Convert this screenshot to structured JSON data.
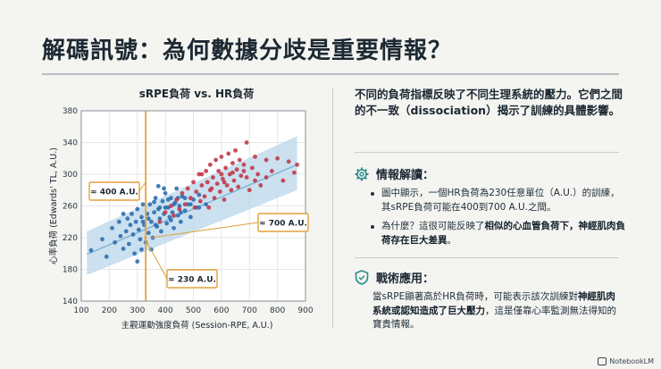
{
  "slide": {
    "title": "解碼訊號：為何數據分歧是重要情報？"
  },
  "chart_data": {
    "type": "scatter",
    "title": "sRPE負荷 vs. HR負荷",
    "xlabel": "主觀運動強度負荷 (Session-RPE, A.U.)",
    "ylabel": "心率負荷 (Edwards' TL, A.U.)",
    "xlim": [
      100,
      900
    ],
    "ylim": [
      140,
      380
    ],
    "xticks": [
      100,
      200,
      300,
      400,
      500,
      600,
      700,
      800,
      900
    ],
    "yticks": [
      140,
      180,
      220,
      260,
      300,
      340,
      380
    ],
    "grid": true,
    "reference_line_x": 330,
    "regression": {
      "x": [
        120,
        870
      ],
      "y": [
        199,
        312
      ]
    },
    "band": {
      "x": [
        120,
        870
      ],
      "upper": [
        228,
        348
      ],
      "lower": [
        173,
        280
      ]
    },
    "annotations": [
      {
        "text": "≈ 400 A.U.",
        "x": 330,
        "y": 290
      },
      {
        "text": "≈ 700 A.U.",
        "x": 330,
        "y": 220
      },
      {
        "text": "≈ 230 A.U.",
        "x": 330,
        "y": 230
      }
    ],
    "colors": {
      "blue": "#2f6fb0",
      "red": "#c23a4a",
      "ref": "#e6a23c",
      "band": "#b9d7ea",
      "line": "#7fb6d6"
    },
    "series": [
      {
        "color": "blue",
        "points": [
          [
            135,
            204
          ],
          [
            175,
            218
          ],
          [
            190,
            196
          ],
          [
            210,
            232
          ],
          [
            220,
            214
          ],
          [
            235,
            240
          ],
          [
            240,
            222
          ],
          [
            250,
            206
          ],
          [
            260,
            228
          ],
          [
            265,
            244
          ],
          [
            270,
            212
          ],
          [
            275,
            236
          ],
          [
            280,
            250
          ],
          [
            285,
            224
          ],
          [
            290,
            200
          ],
          [
            295,
            240
          ],
          [
            300,
            256
          ],
          [
            305,
            230
          ],
          [
            310,
            218
          ],
          [
            315,
            246
          ],
          [
            320,
            262
          ],
          [
            325,
            236
          ],
          [
            330,
            214
          ],
          [
            335,
            250
          ],
          [
            340,
            226
          ],
          [
            345,
            262
          ],
          [
            350,
            240
          ],
          [
            355,
            220
          ],
          [
            360,
            252
          ],
          [
            365,
            270
          ],
          [
            370,
            234
          ],
          [
            375,
            256
          ],
          [
            380,
            244
          ],
          [
            385,
            228
          ],
          [
            390,
            266
          ],
          [
            395,
            250
          ],
          [
            400,
            276
          ],
          [
            405,
            238
          ],
          [
            410,
            258
          ],
          [
            415,
            246
          ],
          [
            420,
            270
          ],
          [
            425,
            252
          ],
          [
            430,
            232
          ],
          [
            435,
            264
          ],
          [
            440,
            282
          ],
          [
            445,
            248
          ],
          [
            450,
            260
          ],
          [
            455,
            240
          ],
          [
            460,
            272
          ],
          [
            470,
            254
          ],
          [
            480,
            262
          ],
          [
            490,
            246
          ],
          [
            500,
            268
          ],
          [
            510,
            258
          ],
          [
            520,
            274
          ],
          [
            300,
            190
          ],
          [
            315,
            205
          ],
          [
            350,
            205
          ],
          [
            360,
            265
          ],
          [
            375,
            285
          ],
          [
            395,
            282
          ],
          [
            410,
            268
          ],
          [
            280,
            270
          ],
          [
            250,
            250
          ],
          [
            320,
            240
          ],
          [
            340,
            244
          ],
          [
            365,
            236
          ],
          [
            380,
            258
          ],
          [
            400,
            258
          ],
          [
            420,
            242
          ],
          [
            430,
            262
          ],
          [
            445,
            270
          ],
          [
            455,
            252
          ],
          [
            470,
            270
          ],
          [
            490,
            262
          ],
          [
            520,
            258
          ],
          [
            545,
            262
          ]
        ]
      },
      {
        "color": "red",
        "points": [
          [
            380,
            240
          ],
          [
            400,
            252
          ],
          [
            420,
            260
          ],
          [
            430,
            248
          ],
          [
            440,
            268
          ],
          [
            450,
            256
          ],
          [
            460,
            276
          ],
          [
            470,
            262
          ],
          [
            480,
            282
          ],
          [
            490,
            270
          ],
          [
            500,
            290
          ],
          [
            505,
            258
          ],
          [
            510,
            278
          ],
          [
            520,
            300
          ],
          [
            525,
            266
          ],
          [
            530,
            286
          ],
          [
            540,
            272
          ],
          [
            545,
            304
          ],
          [
            550,
            290
          ],
          [
            555,
            258
          ],
          [
            560,
            312
          ],
          [
            565,
            282
          ],
          [
            570,
            296
          ],
          [
            575,
            270
          ],
          [
            580,
            318
          ],
          [
            585,
            288
          ],
          [
            590,
            304
          ],
          [
            595,
            278
          ],
          [
            600,
            322
          ],
          [
            605,
            294
          ],
          [
            610,
            268
          ],
          [
            615,
            308
          ],
          [
            620,
            286
          ],
          [
            625,
            326
          ],
          [
            630,
            300
          ],
          [
            635,
            280
          ],
          [
            640,
            314
          ],
          [
            645,
            292
          ],
          [
            650,
            330
          ],
          [
            655,
            306
          ],
          [
            660,
            284
          ],
          [
            665,
            318
          ],
          [
            670,
            298
          ],
          [
            680,
            312
          ],
          [
            690,
            296
          ],
          [
            700,
            280
          ],
          [
            710,
            308
          ],
          [
            720,
            322
          ],
          [
            730,
            300
          ],
          [
            740,
            286
          ],
          [
            760,
            318
          ],
          [
            780,
            304
          ],
          [
            800,
            320
          ],
          [
            820,
            292
          ],
          [
            840,
            316
          ],
          [
            860,
            302
          ],
          [
            870,
            312
          ],
          [
            690,
            340
          ],
          [
            610,
            290
          ],
          [
            560,
            280
          ],
          [
            530,
            300
          ],
          [
            600,
            300
          ],
          [
            640,
            302
          ],
          [
            680,
            304
          ],
          [
            720,
            292
          ],
          [
            760,
            296
          ]
        ]
      }
    ]
  },
  "intro": {
    "text": "不同的負荷指標反映了不同生理系統的壓力。它們之間的不一致（dissociation）揭示了訓練的具體影響。"
  },
  "insight": {
    "heading": "情報解讀：",
    "bullet1": "圖中顯示，一個HR負荷為230任意單位（A.U.）的訓練，其sRPE負荷可能在400到700 A.U.之間。",
    "bullet2_prefix": "為什麼？這很可能反映了",
    "bullet2_bold": "相似的心血管負荷下，神經肌肉負荷存在巨大差異",
    "bullet2_suffix": "。",
    "icon": "gear-icon"
  },
  "tactical": {
    "heading": "戰術應用：",
    "prefix": "當sRPE顯著高於HR負荷時，可能表示該次訓練對",
    "bold": "神經肌肉系統或認知造成了巨大壓力",
    "suffix": "，這是僅靠心率監測無法得知的寶貴情報。",
    "icon": "shield-icon"
  },
  "footer": {
    "brand": "NotebookLM"
  }
}
